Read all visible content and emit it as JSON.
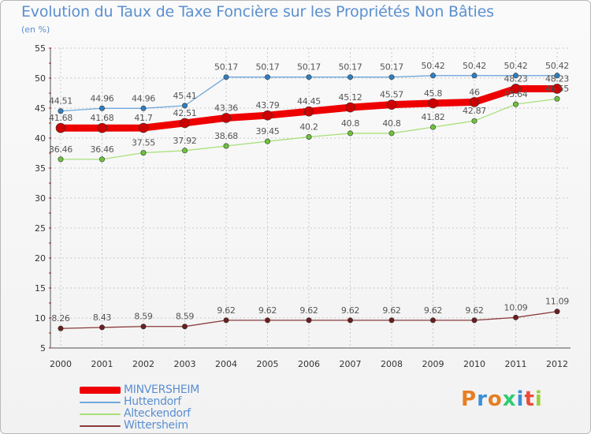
{
  "header": {
    "title": "Evolution du Taux de Taxe Foncière sur les Propriétés Non Bâties",
    "subtitle": "(en %)"
  },
  "logo": {
    "text": "Proxiti",
    "colors": [
      "#e67e22",
      "#3a8fd6",
      "#e67e22",
      "#2ecc71",
      "#3a8fd6",
      "#e74c3c",
      "#9bd13a"
    ]
  },
  "chart_data": {
    "type": "line",
    "title": "Evolution du Taux de Taxe Foncière sur les Propriétés Non Bâties",
    "subtitle": "(en %)",
    "xlabel": "",
    "ylabel": "",
    "categories": [
      "2000",
      "2001",
      "2002",
      "2003",
      "2004",
      "2005",
      "2006",
      "2007",
      "2008",
      "2009",
      "2010",
      "2011",
      "2012"
    ],
    "ylim": [
      5,
      55
    ],
    "yticks": [
      5,
      10,
      15,
      20,
      25,
      30,
      35,
      40,
      45,
      50,
      55
    ],
    "grid": true,
    "legend_position": "bottom-left",
    "series": [
      {
        "name": "MINVERSHEIM",
        "color": "#ee0000",
        "marker": "#cc0000",
        "width": 9,
        "values": [
          41.68,
          41.68,
          41.7,
          42.51,
          43.36,
          43.79,
          44.45,
          45.12,
          45.57,
          45.8,
          46,
          48.23,
          48.23
        ],
        "labels": [
          "41.68",
          "41.68",
          "41.7",
          "42.51",
          "43.36",
          "43.79",
          "44.45",
          "45.12",
          "45.57",
          "45.8",
          "46",
          "48.23",
          "48.23"
        ]
      },
      {
        "name": "Huttendorf",
        "color": "#6fa8dc",
        "marker": "#2e7fc1",
        "width": 1.3,
        "values": [
          44.51,
          44.96,
          44.96,
          45.41,
          50.17,
          50.17,
          50.17,
          50.17,
          50.17,
          50.42,
          50.42,
          50.42,
          50.42
        ],
        "labels": [
          "44.51",
          "44.96",
          "44.96",
          "45.41",
          "50.17",
          "50.17",
          "50.17",
          "50.17",
          "50.17",
          "50.42",
          "50.42",
          "50.42",
          "50.42"
        ]
      },
      {
        "name": "Alteckendorf",
        "color": "#a9e07a",
        "marker": "#6cc43a",
        "width": 1.3,
        "values": [
          36.46,
          36.46,
          37.55,
          37.92,
          38.68,
          39.45,
          40.2,
          40.8,
          40.8,
          41.82,
          42.87,
          45.64,
          46.55
        ],
        "labels": [
          "36.46",
          "36.46",
          "37.55",
          "37.92",
          "38.68",
          "39.45",
          "40.2",
          "40.8",
          "40.8",
          "41.82",
          "42.87",
          "45.64",
          "46.55"
        ]
      },
      {
        "name": "Wittersheim",
        "color": "#8a3a3a",
        "marker": "#6b1e1e",
        "width": 1.3,
        "values": [
          8.26,
          8.43,
          8.59,
          8.59,
          9.62,
          9.62,
          9.62,
          9.62,
          9.62,
          9.62,
          9.62,
          10.09,
          11.09
        ],
        "labels": [
          "8.26",
          "8.43",
          "8.59",
          "8.59",
          "9.62",
          "9.62",
          "9.62",
          "9.62",
          "9.62",
          "9.62",
          "9.62",
          "10.09",
          "11.09"
        ]
      }
    ]
  }
}
